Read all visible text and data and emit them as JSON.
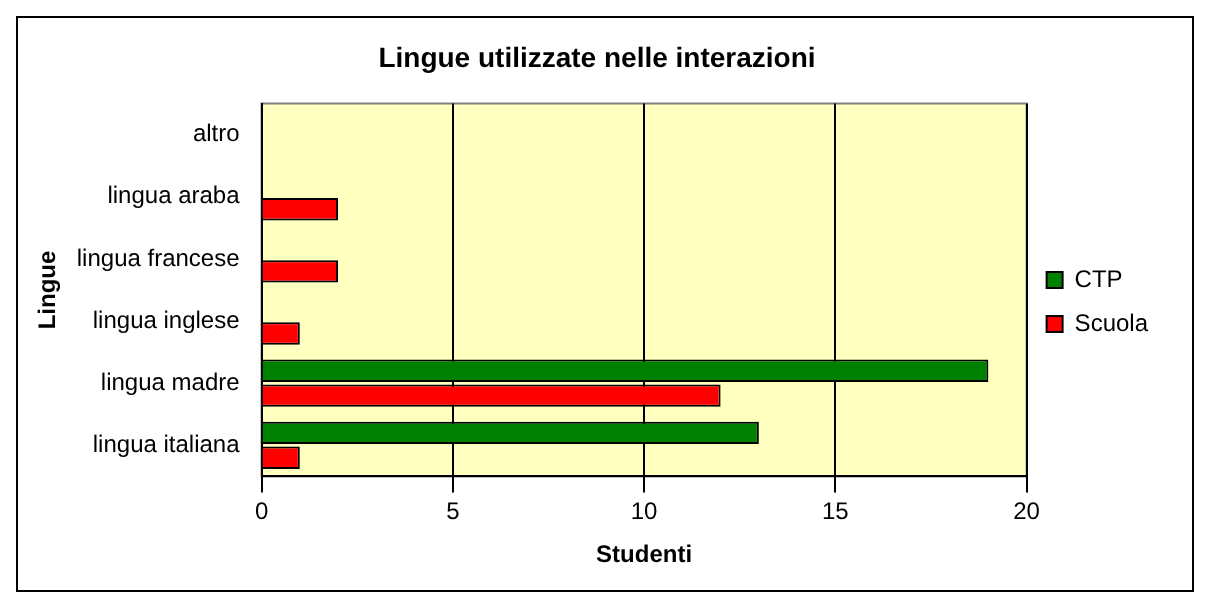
{
  "chart_data": {
    "type": "bar",
    "orientation": "horizontal",
    "title": "Lingue utilizzate nelle interazioni",
    "xlabel": "Studenti",
    "ylabel": "Lingue",
    "categories": [
      "altro",
      "lingua araba",
      "lingua francese",
      "lingua inglese",
      "lingua madre",
      "lingua italiana"
    ],
    "series": [
      {
        "name": "CTP",
        "color": "#008000",
        "values": [
          0,
          0,
          0,
          0,
          19,
          13
        ]
      },
      {
        "name": "Scuola",
        "color": "#ff0000",
        "values": [
          0,
          2,
          2,
          1,
          12,
          1
        ]
      }
    ],
    "xlim": [
      0,
      20
    ],
    "xticks": [
      0,
      5,
      10,
      15,
      20
    ],
    "grid": "x",
    "legend": "right"
  }
}
